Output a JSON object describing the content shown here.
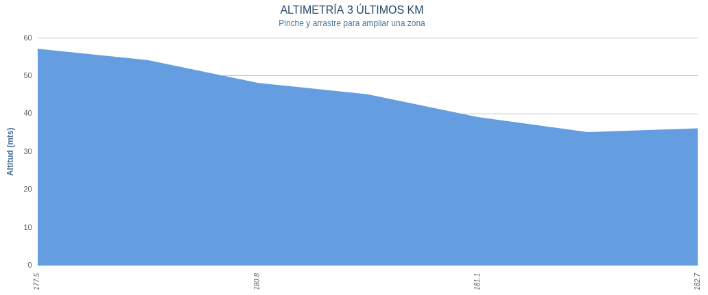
{
  "chart_data": {
    "type": "area",
    "title": "ALTIMETRÍA 3 ÚLTIMOS KM",
    "subtitle": "Pinche y arrastre para ampliar una zona",
    "y_label": "Altitud (mts)",
    "categories": [
      "177.5",
      null,
      "180.8",
      null,
      "181.1",
      null,
      "182.7"
    ],
    "values": [
      57,
      54,
      48,
      45,
      39,
      35,
      36
    ],
    "color": "#659ee0",
    "ylim": [
      0,
      60
    ],
    "yticks": [
      0,
      10,
      20,
      30,
      40,
      50,
      60
    ],
    "grid": true
  }
}
